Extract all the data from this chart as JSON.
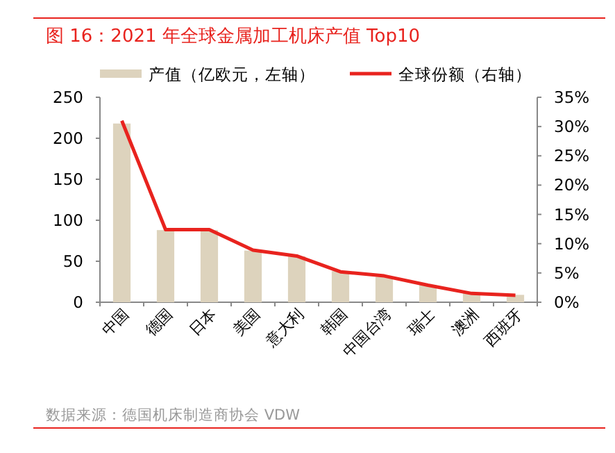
{
  "chart_data": {
    "type": "bar",
    "title": "图 16：2021 年全球金属加工机床产值 Top10",
    "categories": [
      "中国",
      "德国",
      "日本",
      "美国",
      "意大利",
      "韩国",
      "中国台湾",
      "瑞士",
      "澳洲",
      "西班牙"
    ],
    "series": [
      {
        "name": "产值（亿欧元，左轴）",
        "color": "#ddd3bd",
        "values": [
          218,
          88,
          88,
          63,
          56,
          38,
          31,
          21,
          11,
          9
        ]
      },
      {
        "name": "全球份额（右轴）",
        "type": "line",
        "axis": "y2",
        "color": "#e8231e",
        "values": [
          31,
          12.4,
          12.4,
          8.9,
          7.9,
          5.2,
          4.5,
          2.9,
          1.5,
          1.2
        ]
      }
    ],
    "ylim": [
      0,
      250
    ],
    "yticks": [
      0,
      50,
      100,
      150,
      200,
      250
    ],
    "y2lim": [
      0,
      35
    ],
    "y2ticks": [
      {
        "value": 0,
        "label": "0%"
      },
      {
        "value": 5,
        "label": "5%"
      },
      {
        "value": 10,
        "label": "10%"
      },
      {
        "value": 15,
        "label": "15%"
      },
      {
        "value": 20,
        "label": "20%"
      },
      {
        "value": 25,
        "label": "25%"
      },
      {
        "value": 30,
        "label": "30%"
      },
      {
        "value": 35,
        "label": "35%"
      }
    ],
    "legend": "top",
    "grid": false,
    "marker": "none",
    "annotations": [
      "数据来源：德国机床制造商协会 VDW"
    ]
  }
}
